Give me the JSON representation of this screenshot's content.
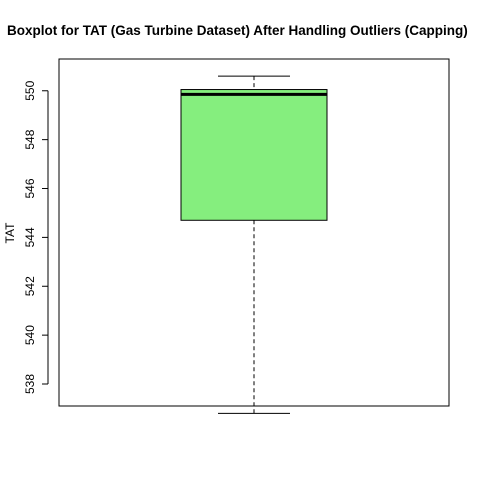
{
  "chart_data": {
    "type": "boxplot",
    "title": "Boxplot for TAT (Gas Turbine Dataset) After Handling Outliers (Capping)",
    "xlabel": "",
    "ylabel": "TAT",
    "ylim": [
      537.1,
      551.3
    ],
    "yticks": [
      538,
      540,
      542,
      544,
      546,
      548,
      550
    ],
    "grid": false,
    "series": [
      {
        "name": "TAT",
        "whisker_low": 536.8,
        "q1": 544.7,
        "median": 549.85,
        "q3": 550.05,
        "whisker_high": 550.6,
        "fill_color": "#85ee7e"
      }
    ]
  },
  "colors": {
    "box_fill": "#85ee7e",
    "stroke": "#000000",
    "background": "#ffffff"
  }
}
